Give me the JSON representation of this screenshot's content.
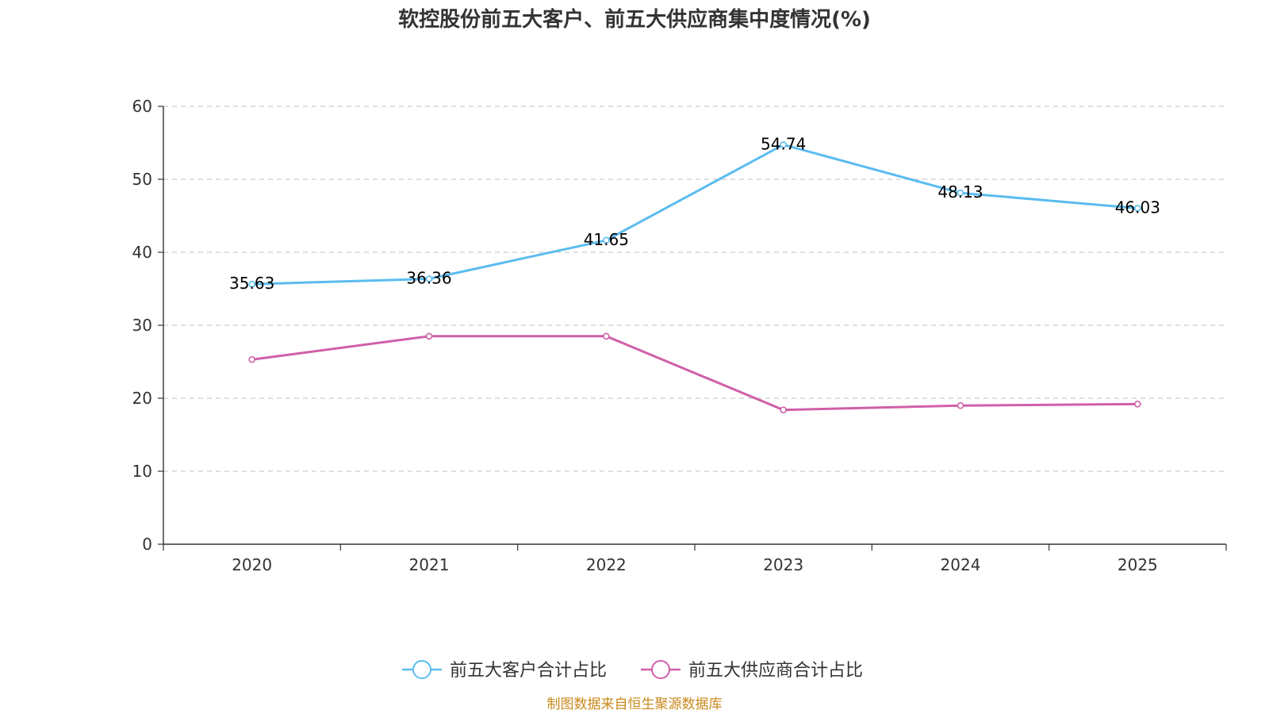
{
  "chart_data": {
    "type": "line",
    "title": "软控股份前五大客户、前五大供应商集中度情况(%)",
    "categories": [
      "2020",
      "2021",
      "2022",
      "2023",
      "2024",
      "2025"
    ],
    "ylim": [
      0,
      60
    ],
    "yticks": [
      0,
      10,
      20,
      30,
      40,
      50,
      60
    ],
    "grid": true,
    "legend_position": "bottom",
    "series": [
      {
        "name": "前五大客户合计占比",
        "color": "#5bbcf0",
        "values": [
          35.63,
          36.36,
          41.65,
          54.74,
          48.13,
          46.03
        ],
        "labels": [
          "35.63",
          "36.36",
          "41.65",
          "54.74",
          "48.13",
          "46.03"
        ],
        "show_labels": true
      },
      {
        "name": "前五大供应商合计占比",
        "color": "#d05fa8",
        "values": [
          25.3,
          28.5,
          28.5,
          18.4,
          19.0,
          19.2
        ],
        "show_labels": false
      }
    ],
    "source": "制图数据来自恒生聚源数据库"
  }
}
